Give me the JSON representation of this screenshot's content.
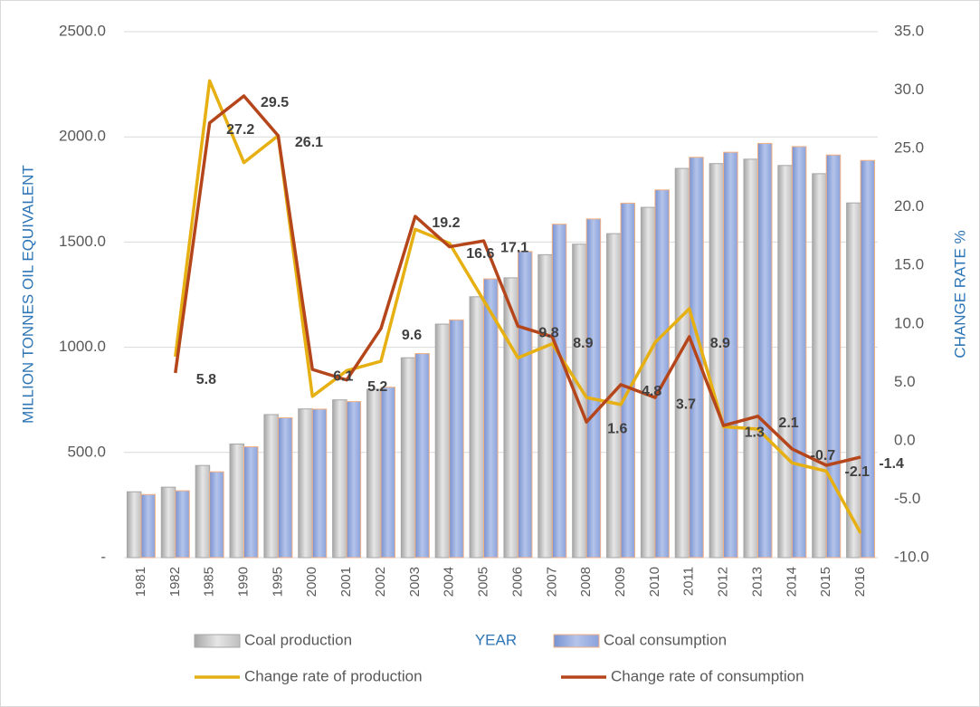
{
  "chart_data": {
    "type": "bar_line",
    "x_label": "YEAR",
    "y_label": "MILLION TONNES OIL EQUIVALENT",
    "y2_label": "CHANGE RATE %",
    "categories": [
      "1981",
      "1982",
      "1985",
      "1990",
      "1995",
      "2000",
      "2001",
      "2002",
      "2003",
      "2004",
      "2005",
      "2006",
      "2007",
      "2008",
      "2009",
      "2010",
      "2011",
      "2012",
      "2013",
      "2014",
      "2015",
      "2016"
    ],
    "series": [
      {
        "name": "Coal production",
        "type": "bar",
        "color": "#c8c8c8",
        "values": [
          313,
          335,
          438,
          540,
          680,
          707,
          750,
          800,
          950,
          1110,
          1240,
          1330,
          1440,
          1490,
          1540,
          1665,
          1850,
          1873,
          1894,
          1864,
          1825,
          1686
        ]
      },
      {
        "name": "Coal consumption",
        "type": "bar",
        "color": "#8fa8dc",
        "values": [
          300,
          318,
          408,
          527,
          665,
          706,
          742,
          810,
          970,
          1130,
          1325,
          1455,
          1585,
          1610,
          1685,
          1748,
          1903,
          1927,
          1969,
          1954,
          1914,
          1888
        ]
      },
      {
        "name": "Change rate of production",
        "type": "line",
        "axis": "y2",
        "color": "#e6b012",
        "values": [
          null,
          7.2,
          30.8,
          23.8,
          26.1,
          3.8,
          6.0,
          6.8,
          18.1,
          16.9,
          12.0,
          7.1,
          8.3,
          3.7,
          3.1,
          8.4,
          11.3,
          1.2,
          1.0,
          -1.9,
          -2.6,
          -7.9
        ]
      },
      {
        "name": "Change rate of consumption",
        "type": "line",
        "axis": "y2",
        "color": "#b5451b",
        "values": [
          null,
          5.8,
          27.2,
          29.5,
          26.1,
          6.1,
          5.2,
          9.6,
          19.2,
          16.6,
          17.1,
          9.8,
          8.9,
          1.6,
          4.8,
          3.7,
          8.9,
          1.3,
          2.1,
          -0.7,
          -2.1,
          -1.4
        ],
        "show_labels": true
      }
    ],
    "ylim": [
      0,
      2500
    ],
    "yticks": [
      {
        "value": 0,
        "label": "-"
      },
      {
        "value": 500,
        "label": "500.0"
      },
      {
        "value": 1000,
        "label": "1000.0"
      },
      {
        "value": 1500,
        "label": "1500.0"
      },
      {
        "value": 2000,
        "label": "2000.0"
      },
      {
        "value": 2500,
        "label": "2500.0"
      }
    ],
    "y2lim": [
      -10,
      35
    ],
    "y2ticks": [
      {
        "value": -10,
        "label": "-10.0"
      },
      {
        "value": -5,
        "label": "-5.0"
      },
      {
        "value": 0,
        "label": "0.0"
      },
      {
        "value": 5,
        "label": "5.0"
      },
      {
        "value": 10,
        "label": "10.0"
      },
      {
        "value": 15,
        "label": "15.0"
      },
      {
        "value": 20,
        "label": "20.0"
      },
      {
        "value": 25,
        "label": "25.0"
      },
      {
        "value": 30,
        "label": "30.0"
      },
      {
        "value": 35,
        "label": "35.0"
      }
    ],
    "grid": true
  }
}
